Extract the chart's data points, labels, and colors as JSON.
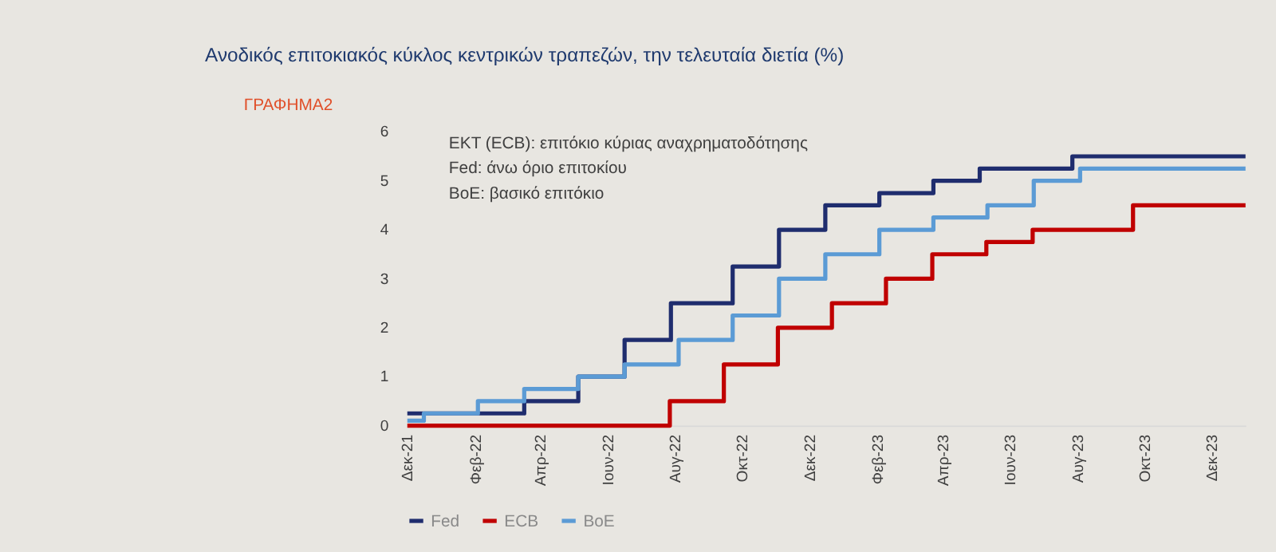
{
  "chart_data": {
    "type": "step",
    "title": "Ανοδικός επιτοκιακός κύκλος κεντρικών τραπεζών, την τελευταία διετία (%)",
    "annotations": [
      "ΕΚΤ (ECB):  επιτόκιο κύριας αναχρηματοδότησης",
      "Fed: άνω όριο επιτοκίου",
      "BoE: βασικό επιτόκιο",
      "ΓΡΑΦΗΜΑ2"
    ],
    "xlim": [
      "2021-12-01",
      "2023-12-31"
    ],
    "xticks": [
      {
        "value": "2021-12-01",
        "label": "Δεκ-21"
      },
      {
        "value": "2022-02-01",
        "label": "Φεβ-22"
      },
      {
        "value": "2022-04-01",
        "label": "Απρ-22"
      },
      {
        "value": "2022-06-01",
        "label": "Ιουν-22"
      },
      {
        "value": "2022-08-01",
        "label": "Αυγ-22"
      },
      {
        "value": "2022-10-01",
        "label": "Οκτ-22"
      },
      {
        "value": "2022-12-01",
        "label": "Δεκ-22"
      },
      {
        "value": "2023-02-01",
        "label": "Φεβ-23"
      },
      {
        "value": "2023-04-01",
        "label": "Απρ-23"
      },
      {
        "value": "2023-06-01",
        "label": "Ιουν-23"
      },
      {
        "value": "2023-08-01",
        "label": "Αυγ-23"
      },
      {
        "value": "2023-10-01",
        "label": "Οκτ-23"
      },
      {
        "value": "2023-12-01",
        "label": "Δεκ-23"
      }
    ],
    "ylim": [
      0,
      6
    ],
    "yticks": [
      0,
      1,
      2,
      3,
      4,
      5,
      6
    ],
    "grid": false,
    "legend": "bottom",
    "line_style": "solid",
    "marker": "none",
    "series": [
      {
        "name": "Fed",
        "color": "#1f2d6e",
        "x": [
          "2021-12-01",
          "2022-03-17",
          "2022-05-05",
          "2022-06-16",
          "2022-07-28",
          "2022-09-22",
          "2022-11-03",
          "2022-12-15",
          "2023-02-02",
          "2023-03-23",
          "2023-05-04",
          "2023-07-27",
          "2023-12-31"
        ],
        "values": [
          0.25,
          0.5,
          1.0,
          1.75,
          2.5,
          3.25,
          4.0,
          4.5,
          4.75,
          5.0,
          5.25,
          5.5,
          5.5
        ]
      },
      {
        "name": "ECB",
        "color": "#c00000",
        "x": [
          "2021-12-01",
          "2022-07-27",
          "2022-09-14",
          "2022-11-02",
          "2022-12-21",
          "2023-02-08",
          "2023-03-22",
          "2023-05-10",
          "2023-06-21",
          "2023-09-20",
          "2023-12-31"
        ],
        "values": [
          0,
          0.5,
          1.25,
          2.0,
          2.5,
          3.0,
          3.5,
          3.75,
          4.0,
          4.5,
          4.5
        ]
      },
      {
        "name": "BoE",
        "color": "#5b9bd5",
        "x": [
          "2021-12-01",
          "2021-12-16",
          "2022-02-03",
          "2022-03-17",
          "2022-05-05",
          "2022-06-16",
          "2022-08-04",
          "2022-09-22",
          "2022-11-03",
          "2022-12-15",
          "2023-02-02",
          "2023-03-23",
          "2023-05-11",
          "2023-06-22",
          "2023-08-03",
          "2023-12-31"
        ],
        "values": [
          0.1,
          0.25,
          0.5,
          0.75,
          1.0,
          1.25,
          1.75,
          2.25,
          3.0,
          3.5,
          4.0,
          4.25,
          4.5,
          5.0,
          5.25,
          5.25
        ]
      }
    ]
  }
}
